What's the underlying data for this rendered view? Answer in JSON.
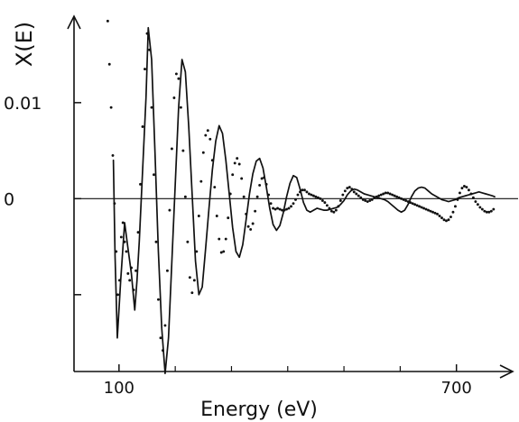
{
  "chart_data": {
    "type": "line",
    "title": "",
    "xlabel": "Energy (eV)",
    "ylabel": "X(E)",
    "xlim": [
      20,
      800
    ],
    "ylim": [
      -0.018,
      0.019
    ],
    "x_ticks": [
      {
        "value": 100,
        "label": "100"
      },
      {
        "value": 700,
        "label": "700"
      }
    ],
    "x_minor_ticks": [
      200,
      300,
      400,
      500,
      600
    ],
    "y_ticks": [
      {
        "value": 0.01,
        "label": "0.01"
      },
      {
        "value": 0,
        "label": "0"
      },
      {
        "value": -0.01,
        "label": ""
      }
    ],
    "zero_line": true,
    "grid": false,
    "legend": "none",
    "series": [
      {
        "style": "solid",
        "color": "#111111",
        "x": [
          90,
          93,
          97,
          103,
          110,
          116,
          122,
          128,
          132,
          136,
          142,
          148,
          152,
          158,
          164,
          170,
          176,
          182,
          188,
          194,
          200,
          206,
          212,
          218,
          224,
          230,
          236,
          242,
          248,
          254,
          260,
          266,
          272,
          278,
          284,
          290,
          296,
          302,
          308,
          314,
          320,
          326,
          332,
          338,
          344,
          350,
          356,
          362,
          368,
          374,
          380,
          386,
          392,
          398,
          404,
          410,
          416,
          422,
          428,
          434,
          440,
          446,
          452,
          458,
          464,
          470,
          476,
          482,
          488,
          494,
          500,
          506,
          512,
          518,
          524,
          530,
          536,
          542,
          548,
          554,
          560,
          566,
          572,
          578,
          584,
          590,
          596,
          602,
          608,
          614,
          620,
          626,
          632,
          638,
          644,
          650,
          656,
          662,
          668,
          674,
          680,
          686,
          692,
          698,
          704,
          710,
          716,
          722,
          728,
          734,
          740,
          746,
          752,
          758,
          764,
          768
        ],
        "y": [
          0.004,
          -0.006,
          -0.0145,
          -0.0085,
          -0.0025,
          -0.0052,
          -0.0078,
          -0.0116,
          -0.0085,
          -0.0045,
          0.003,
          0.0105,
          0.0178,
          0.0145,
          0.0048,
          -0.0055,
          -0.0135,
          -0.0182,
          -0.0145,
          -0.0065,
          0.0015,
          0.0095,
          0.0145,
          0.0132,
          0.0075,
          0.0005,
          -0.0065,
          -0.01,
          -0.0092,
          -0.0052,
          -0.001,
          0.003,
          0.006,
          0.0076,
          0.0068,
          0.004,
          0.0005,
          -0.003,
          -0.0055,
          -0.0061,
          -0.0048,
          -0.0022,
          0.0005,
          0.0026,
          0.0039,
          0.0042,
          0.0032,
          0.0012,
          -0.001,
          -0.0027,
          -0.0033,
          -0.0028,
          -0.0015,
          0.0002,
          0.0016,
          0.0024,
          0.0022,
          0.001,
          -0.0004,
          -0.0012,
          -0.0014,
          -0.0012,
          -0.001,
          -0.0011,
          -0.0012,
          -0.0012,
          -0.0011,
          -0.001,
          -0.0009,
          -0.0006,
          -0.0002,
          0.0004,
          0.0008,
          0.001,
          0.0009,
          0.0007,
          0.0005,
          0.0004,
          0.0003,
          0.0002,
          0.0001,
          0.0,
          -0.0001,
          -0.0003,
          -0.0006,
          -0.0009,
          -0.0012,
          -0.0014,
          -0.0012,
          -0.0006,
          0.0002,
          0.0008,
          0.0011,
          0.0012,
          0.0011,
          0.0008,
          0.0005,
          0.0003,
          0.0001,
          -0.0001,
          -0.0002,
          -0.0003,
          -0.0002,
          -0.0001,
          0.0001,
          0.0002,
          0.0003,
          0.0004,
          0.0005,
          0.0006,
          0.0007,
          0.0006,
          0.0005,
          0.0004,
          0.0003,
          0.0002
        ]
      },
      {
        "style": "dotted",
        "color": "#111111",
        "x": [
          80,
          83,
          86,
          89,
          92,
          95,
          98,
          101,
          104,
          107,
          110,
          113,
          116,
          119,
          122,
          126,
          130,
          134,
          138,
          142,
          146,
          150,
          154,
          158,
          162,
          166,
          170,
          174,
          178,
          182,
          186,
          190,
          194,
          198,
          202,
          206,
          210,
          214,
          218,
          222,
          226,
          230,
          234,
          238,
          242,
          246,
          250,
          254,
          258,
          262,
          266,
          270,
          274,
          278,
          282,
          286,
          290,
          294,
          298,
          302,
          306,
          310,
          314,
          318,
          322,
          326,
          330,
          334,
          338,
          342,
          346,
          350,
          354,
          358,
          362,
          366,
          370,
          374,
          378,
          382,
          386,
          390,
          394,
          398,
          402,
          406,
          410,
          414,
          418,
          422,
          426,
          430,
          434,
          438,
          442,
          446,
          450,
          454,
          458,
          462,
          466,
          470,
          474,
          478,
          482,
          486,
          490,
          494,
          498,
          502,
          506,
          510,
          514,
          518,
          522,
          526,
          530,
          534,
          538,
          542,
          546,
          550,
          554,
          558,
          562,
          566,
          570,
          574,
          578,
          582,
          586,
          590,
          594,
          598,
          602,
          606,
          610,
          614,
          618,
          622,
          626,
          630,
          634,
          638,
          642,
          646,
          650,
          654,
          658,
          662,
          666,
          670,
          674,
          678,
          682,
          686,
          690,
          694,
          698,
          702,
          706,
          710,
          714,
          718,
          722,
          726,
          730,
          734,
          738,
          742,
          746,
          750,
          754,
          758,
          762,
          766
        ],
        "y": [
          0.0185,
          0.014,
          0.0095,
          0.0045,
          -0.0005,
          -0.0055,
          -0.01,
          -0.0085,
          -0.004,
          -0.0025,
          -0.0045,
          -0.0055,
          -0.0078,
          -0.0085,
          -0.0072,
          -0.0095,
          -0.0075,
          -0.0035,
          0.0015,
          0.0075,
          0.0135,
          0.0172,
          0.0155,
          0.0095,
          0.0025,
          -0.0045,
          -0.0105,
          -0.0145,
          -0.0158,
          -0.0132,
          -0.0075,
          -0.0012,
          0.0052,
          0.0105,
          0.013,
          0.0125,
          0.0095,
          0.005,
          0.0002,
          -0.0045,
          -0.0082,
          -0.0098,
          -0.0085,
          -0.0055,
          -0.0018,
          0.0018,
          0.0048,
          0.0066,
          0.0071,
          0.0062,
          0.004,
          0.0012,
          -0.0018,
          -0.0042,
          -0.0056,
          -0.0055,
          -0.0042,
          -0.002,
          0.0005,
          0.0025,
          0.0037,
          0.0042,
          0.0036,
          0.0021,
          0.0002,
          -0.0016,
          -0.0029,
          -0.0032,
          -0.0026,
          -0.0013,
          0.0002,
          0.0014,
          0.0021,
          0.0022,
          0.0015,
          0.0004,
          -0.0005,
          -0.001,
          -0.0011,
          -0.001,
          -0.0011,
          -0.0012,
          -0.0012,
          -0.0011,
          -0.001,
          -0.0008,
          -0.0005,
          -0.0001,
          0.0004,
          0.0007,
          0.0009,
          0.0009,
          0.0007,
          0.0005,
          0.0004,
          0.0003,
          0.0002,
          0.0001,
          0.0,
          -0.0002,
          -0.0004,
          -0.0007,
          -0.001,
          -0.0013,
          -0.0014,
          -0.0012,
          -0.0008,
          -0.0002,
          0.0004,
          0.0008,
          0.0011,
          0.0012,
          0.001,
          0.0007,
          0.0005,
          0.0003,
          0.0001,
          -0.0001,
          -0.0002,
          -0.0003,
          -0.0002,
          -0.0001,
          0.0001,
          0.0002,
          0.0003,
          0.0004,
          0.0005,
          0.0006,
          0.0006,
          0.0005,
          0.0004,
          0.0003,
          0.0002,
          0.0001,
          0.0,
          -0.0001,
          -0.0002,
          -0.0003,
          -0.0004,
          -0.0005,
          -0.0006,
          -0.0007,
          -0.0008,
          -0.0009,
          -0.001,
          -0.0011,
          -0.0012,
          -0.0013,
          -0.0014,
          -0.0015,
          -0.0016,
          -0.0018,
          -0.002,
          -0.0022,
          -0.0023,
          -0.0022,
          -0.0019,
          -0.0014,
          -0.0008,
          -0.0001,
          0.0006,
          0.0011,
          0.0013,
          0.0012,
          0.0009,
          0.0005,
          0.0001,
          -0.0003,
          -0.0006,
          -0.0009,
          -0.0011,
          -0.0013,
          -0.0014,
          -0.0014,
          -0.0013,
          -0.0011
        ]
      }
    ]
  }
}
